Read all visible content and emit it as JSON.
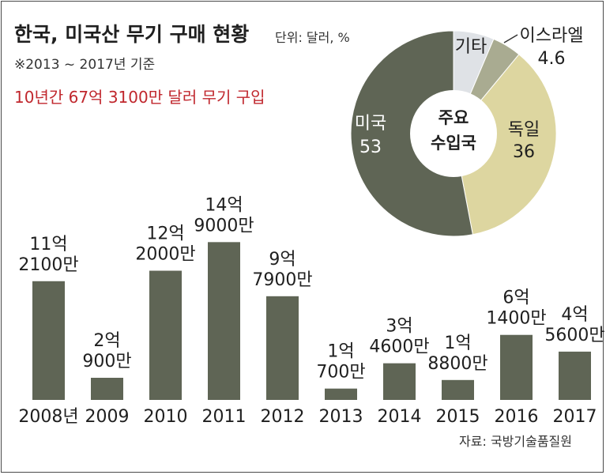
{
  "header": {
    "title": "한국, 미국산 무기 구매 현황",
    "unit": "단위: 달러, %",
    "base_period": "※2013 ~ 2017년 기준",
    "highlight": "10년간 67억 3100만 달러 무기 구입"
  },
  "source": "자료: 국방기술품질원",
  "colors": {
    "bar": "#5f6555",
    "usa": "#5f6555",
    "germany": "#ddd6a0",
    "israel": "#a9ab91",
    "other": "#dfe2e6",
    "highlight_text": "#c0272d",
    "frame": "#4a4a4a"
  },
  "chart_data": [
    {
      "type": "bar",
      "categories": [
        "2008년",
        "2009",
        "2010",
        "2011",
        "2012",
        "2013",
        "2014",
        "2015",
        "2016",
        "2017"
      ],
      "values": [
        11.21,
        2.09,
        12.2,
        14.9,
        9.79,
        1.07,
        3.46,
        1.88,
        6.14,
        4.56
      ],
      "value_unit": "억 달러",
      "data_labels": [
        [
          "11억",
          "2100만"
        ],
        [
          "2억",
          "900만"
        ],
        [
          "12억",
          "2000만"
        ],
        [
          "14억",
          "9000만"
        ],
        [
          "9억",
          "7900만"
        ],
        [
          "1억",
          "700만"
        ],
        [
          "3억",
          "4600만"
        ],
        [
          "1억",
          "8800만"
        ],
        [
          "6억",
          "1400만"
        ],
        [
          "4억",
          "5600만"
        ]
      ],
      "ylim": [
        0,
        16
      ],
      "grid": false,
      "legend": "none"
    },
    {
      "type": "pie",
      "center_label": [
        "주요",
        "수입국"
      ],
      "slices": [
        {
          "name": "미국",
          "value": 53,
          "color": "#5f6555",
          "label_color": "#ffffff"
        },
        {
          "name": "독일",
          "value": 36,
          "color": "#ddd6a0",
          "label_color": "#1f1f1f"
        },
        {
          "name": "이스라엘",
          "value": 4.6,
          "color": "#a9ab91",
          "label_color": "#1f1f1f"
        },
        {
          "name": "기타",
          "value": 6.4,
          "value_label": "",
          "color": "#dfe2e6",
          "label_color": "#1f1f1f"
        }
      ]
    }
  ]
}
